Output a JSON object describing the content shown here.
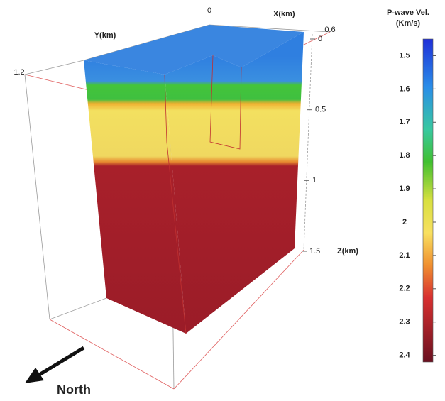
{
  "chart_data": {
    "type": "volume",
    "x_axis": {
      "label": "X(km)",
      "lim": [
        0,
        0.6
      ],
      "ticks": [
        0,
        0.6
      ]
    },
    "y_axis": {
      "label": "Y(km)",
      "lim": [
        0,
        1.2
      ],
      "ticks": [
        1.2
      ]
    },
    "z_axis": {
      "label": "Z(km)",
      "lim": [
        0,
        1.5
      ],
      "ticks": [
        0,
        0.5,
        1,
        1.5
      ]
    },
    "colorbar": {
      "title": [
        "P-wave Vel.",
        "(Km/s)"
      ],
      "lim": [
        1.45,
        2.42
      ],
      "ticks": [
        1.5,
        1.6,
        1.7,
        1.8,
        1.9,
        2.0,
        2.1,
        2.2,
        2.3,
        2.4
      ]
    },
    "annotation": "North"
  }
}
